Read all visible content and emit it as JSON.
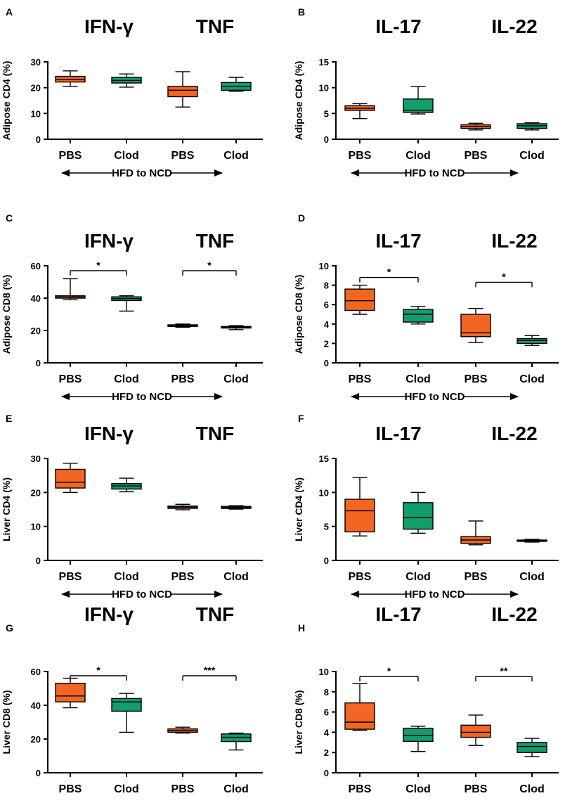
{
  "figure": {
    "arrow_label": "HFD to NCD",
    "colors": {
      "PBS": "#f26522",
      "Clod": "#139c6c"
    }
  },
  "chart_data": [
    {
      "panel": "A",
      "type": "box",
      "ylabel": "Adipose CD4 (%)",
      "ylim": [
        0,
        30
      ],
      "yticks": [
        0,
        10,
        20,
        30
      ],
      "titles": [
        "IFN-γ",
        "TNF"
      ],
      "categories": [
        "PBS",
        "Clod",
        "PBS",
        "Clod"
      ],
      "series": [
        {
          "name": "PBS",
          "min": 20.5,
          "q1": 22.2,
          "median": 23.2,
          "q3": 24.4,
          "max": 26.5
        },
        {
          "name": "Clod",
          "min": 20.2,
          "q1": 21.8,
          "median": 22.8,
          "q3": 24.0,
          "max": 25.3
        },
        {
          "name": "PBS",
          "min": 12.5,
          "q1": 16.5,
          "median": 19.0,
          "q3": 20.5,
          "max": 26.2
        },
        {
          "name": "Clod",
          "min": 18.6,
          "q1": 19.0,
          "median": 20.5,
          "q3": 22.0,
          "max": 24.0
        }
      ],
      "significance": []
    },
    {
      "panel": "B",
      "type": "box",
      "ylabel": "Adipose CD4 (%)",
      "ylim": [
        0,
        15
      ],
      "yticks": [
        0,
        5,
        10,
        15
      ],
      "titles": [
        "IL-17",
        "IL-22"
      ],
      "categories": [
        "PBS",
        "Clod",
        "PBS",
        "Clod"
      ],
      "series": [
        {
          "name": "PBS",
          "min": 4.0,
          "q1": 5.6,
          "median": 6.0,
          "q3": 6.5,
          "max": 6.9
        },
        {
          "name": "Clod",
          "min": 4.9,
          "q1": 5.2,
          "median": 5.6,
          "q3": 7.8,
          "max": 10.2
        },
        {
          "name": "PBS",
          "min": 1.8,
          "q1": 2.1,
          "median": 2.5,
          "q3": 2.8,
          "max": 3.1
        },
        {
          "name": "Clod",
          "min": 1.8,
          "q1": 2.1,
          "median": 2.6,
          "q3": 3.0,
          "max": 3.2
        }
      ],
      "significance": []
    },
    {
      "panel": "C",
      "type": "box",
      "ylabel": "Adipose CD8 (%)",
      "ylim": [
        0,
        60
      ],
      "yticks": [
        0,
        20,
        40,
        60
      ],
      "titles": [
        "IFN-γ",
        "TNF"
      ],
      "categories": [
        "PBS",
        "Clod",
        "PBS",
        "Clod"
      ],
      "series": [
        {
          "name": "PBS",
          "min": 39.0,
          "q1": 40.0,
          "median": 40.8,
          "q3": 41.5,
          "max": 52.0
        },
        {
          "name": "Clod",
          "min": 32.0,
          "q1": 38.5,
          "median": 39.7,
          "q3": 40.8,
          "max": 41.5
        },
        {
          "name": "PBS",
          "min": 22.0,
          "q1": 22.5,
          "median": 23.0,
          "q3": 23.5,
          "max": 24.0
        },
        {
          "name": "Clod",
          "min": 20.5,
          "q1": 21.5,
          "median": 22.0,
          "q3": 22.5,
          "max": 23.0
        }
      ],
      "significance": [
        {
          "from": 0,
          "to": 1,
          "y": 57,
          "label": "*"
        },
        {
          "from": 2,
          "to": 3,
          "y": 57,
          "label": "*"
        }
      ]
    },
    {
      "panel": "D",
      "type": "box",
      "ylabel": "Adipose CD8 (%)",
      "ylim": [
        0,
        10
      ],
      "yticks": [
        0,
        2,
        4,
        6,
        8,
        10
      ],
      "titles": [
        "IL-17",
        "IL-22"
      ],
      "categories": [
        "PBS",
        "Clod",
        "PBS",
        "Clod"
      ],
      "series": [
        {
          "name": "PBS",
          "min": 5.0,
          "q1": 5.4,
          "median": 6.4,
          "q3": 7.6,
          "max": 8.0
        },
        {
          "name": "Clod",
          "min": 4.0,
          "q1": 4.2,
          "median": 5.0,
          "q3": 5.5,
          "max": 5.8
        },
        {
          "name": "PBS",
          "min": 2.1,
          "q1": 2.7,
          "median": 3.1,
          "q3": 5.0,
          "max": 5.6
        },
        {
          "name": "Clod",
          "min": 1.8,
          "q1": 2.0,
          "median": 2.3,
          "q3": 2.5,
          "max": 2.8
        }
      ],
      "significance": [
        {
          "from": 0,
          "to": 1,
          "y": 8.8,
          "label": "*"
        },
        {
          "from": 2,
          "to": 3,
          "y": 8.3,
          "label": "*"
        }
      ]
    },
    {
      "panel": "E",
      "type": "box",
      "ylabel": "Liver CD4 (%)",
      "ylim": [
        0,
        30
      ],
      "yticks": [
        0,
        10,
        20,
        30
      ],
      "titles": [
        "IFN-γ",
        "TNF"
      ],
      "categories": [
        "PBS",
        "Clod",
        "PBS",
        "Clod"
      ],
      "series": [
        {
          "name": "PBS",
          "min": 20.0,
          "q1": 21.3,
          "median": 23.0,
          "q3": 26.8,
          "max": 28.6
        },
        {
          "name": "Clod",
          "min": 20.2,
          "q1": 21.0,
          "median": 21.9,
          "q3": 22.6,
          "max": 24.2
        },
        {
          "name": "PBS",
          "min": 14.9,
          "q1": 15.3,
          "median": 15.7,
          "q3": 16.0,
          "max": 16.5
        },
        {
          "name": "Clod",
          "min": 15.1,
          "q1": 15.3,
          "median": 15.6,
          "q3": 15.9,
          "max": 16.1
        }
      ],
      "significance": []
    },
    {
      "panel": "F",
      "type": "box",
      "ylabel": "Liver CD4 (%)",
      "ylim": [
        0,
        15
      ],
      "yticks": [
        0,
        5,
        10,
        15
      ],
      "titles": [
        "IL-17",
        "IL-22"
      ],
      "categories": [
        "PBS",
        "Clod",
        "PBS",
        "Clod"
      ],
      "series": [
        {
          "name": "PBS",
          "min": 3.6,
          "q1": 4.2,
          "median": 7.3,
          "q3": 9.0,
          "max": 12.2
        },
        {
          "name": "Clod",
          "min": 4.0,
          "q1": 4.6,
          "median": 6.3,
          "q3": 8.5,
          "max": 10.0
        },
        {
          "name": "PBS",
          "min": 2.3,
          "q1": 2.5,
          "median": 3.0,
          "q3": 3.5,
          "max": 5.8
        },
        {
          "name": "Clod",
          "min": 2.7,
          "q1": 2.8,
          "median": 2.9,
          "q3": 3.0,
          "max": 3.1
        }
      ],
      "significance": []
    },
    {
      "panel": "G",
      "type": "box",
      "ylabel": "Liver CD8 (%)",
      "ylim": [
        0,
        60
      ],
      "yticks": [
        0,
        20,
        40,
        60
      ],
      "titles": [
        "IFN-γ",
        "TNF"
      ],
      "categories": [
        "PBS",
        "Clod",
        "PBS",
        "Clod"
      ],
      "series": [
        {
          "name": "PBS",
          "min": 38.5,
          "q1": 42.0,
          "median": 45.5,
          "q3": 53.0,
          "max": 56.0
        },
        {
          "name": "Clod",
          "min": 24.0,
          "q1": 36.5,
          "median": 42.0,
          "q3": 44.0,
          "max": 47.0
        },
        {
          "name": "PBS",
          "min": 23.5,
          "q1": 24.0,
          "median": 25.0,
          "q3": 26.0,
          "max": 27.0
        },
        {
          "name": "Clod",
          "min": 13.5,
          "q1": 18.5,
          "median": 21.0,
          "q3": 23.0,
          "max": 23.5
        }
      ],
      "significance": [
        {
          "from": 0,
          "to": 1,
          "y": 57.5,
          "label": "*"
        },
        {
          "from": 2,
          "to": 3,
          "y": 57.5,
          "label": "***"
        }
      ]
    },
    {
      "panel": "H",
      "type": "box",
      "ylabel": "Liver CD8 (%)",
      "ylim": [
        0,
        10
      ],
      "yticks": [
        0,
        2,
        4,
        6,
        8,
        10
      ],
      "titles": [
        "IL-17",
        "IL-22"
      ],
      "categories": [
        "PBS",
        "Clod",
        "PBS",
        "Clod"
      ],
      "series": [
        {
          "name": "PBS",
          "min": 4.2,
          "q1": 4.3,
          "median": 5.0,
          "q3": 6.9,
          "max": 8.8
        },
        {
          "name": "Clod",
          "min": 2.1,
          "q1": 3.1,
          "median": 3.7,
          "q3": 4.4,
          "max": 4.6
        },
        {
          "name": "PBS",
          "min": 2.7,
          "q1": 3.5,
          "median": 4.0,
          "q3": 4.7,
          "max": 5.7
        },
        {
          "name": "Clod",
          "min": 1.6,
          "q1": 2.0,
          "median": 2.6,
          "q3": 3.0,
          "max": 3.4
        }
      ],
      "significance": [
        {
          "from": 0,
          "to": 1,
          "y": 9.5,
          "label": "*"
        },
        {
          "from": 2,
          "to": 3,
          "y": 9.5,
          "label": "**"
        }
      ]
    }
  ]
}
